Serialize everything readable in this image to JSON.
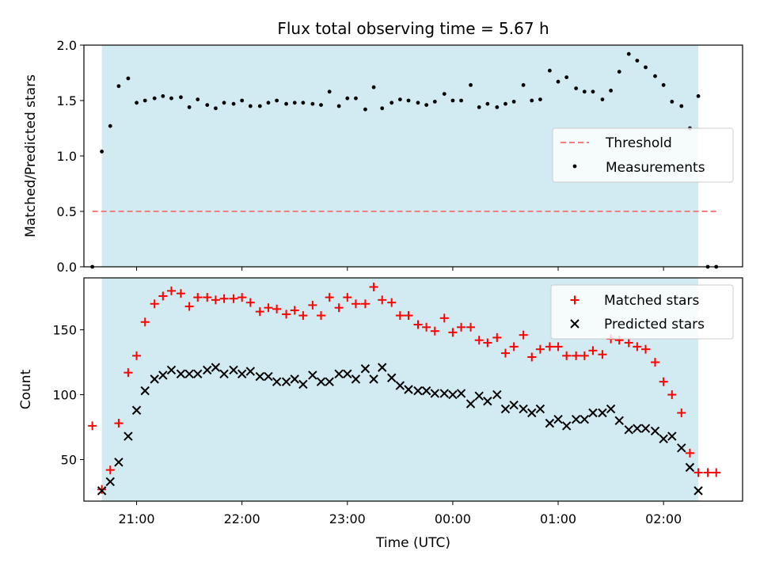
{
  "chart_data": [
    {
      "type": "scatter",
      "title": "Flux total observing time = 5.67 h",
      "xlabel": "",
      "ylabel": "Matched/Predicted stars",
      "xlim": [
        20.5,
        26.75
      ],
      "ylim": [
        0,
        2.0
      ],
      "yticks": [
        0.0,
        0.5,
        1.0,
        1.5,
        2.0
      ],
      "ytick_labels": [
        "0.0",
        "0.5",
        "1.0",
        "1.5",
        "2.0"
      ],
      "grid": false,
      "legend_position": "center-right",
      "observing_window": [
        20.67,
        26.33
      ],
      "observing_window_color": "#add8e6",
      "threshold": {
        "name": "Threshold",
        "value": 0.5,
        "x_range": [
          20.58,
          26.5
        ],
        "color": "#f08080"
      },
      "series": [
        {
          "name": "Measurements",
          "color": "#000000",
          "x": [
            20.58,
            20.67,
            20.75,
            20.83,
            20.92,
            21.0,
            21.08,
            21.17,
            21.25,
            21.33,
            21.42,
            21.5,
            21.58,
            21.67,
            21.75,
            21.83,
            21.92,
            22.0,
            22.08,
            22.17,
            22.25,
            22.33,
            22.42,
            22.5,
            22.58,
            22.67,
            22.75,
            22.83,
            22.92,
            23.0,
            23.08,
            23.17,
            23.25,
            23.33,
            23.42,
            23.5,
            23.58,
            23.67,
            23.75,
            23.83,
            23.92,
            24.0,
            24.08,
            24.17,
            24.25,
            24.33,
            24.42,
            24.5,
            24.58,
            24.67,
            24.75,
            24.83,
            24.92,
            25.0,
            25.08,
            25.17,
            25.25,
            25.33,
            25.42,
            25.5,
            25.58,
            25.67,
            25.75,
            25.83,
            25.92,
            26.0,
            26.08,
            26.17,
            26.25,
            26.33,
            26.42,
            26.5
          ],
          "y": [
            0.0,
            1.04,
            1.27,
            1.63,
            1.7,
            1.48,
            1.5,
            1.52,
            1.54,
            1.52,
            1.53,
            1.44,
            1.51,
            1.46,
            1.43,
            1.48,
            1.47,
            1.5,
            1.45,
            1.45,
            1.48,
            1.5,
            1.47,
            1.48,
            1.48,
            1.47,
            1.46,
            1.58,
            1.45,
            1.52,
            1.52,
            1.42,
            1.62,
            1.43,
            1.48,
            1.51,
            1.5,
            1.48,
            1.46,
            1.49,
            1.56,
            1.5,
            1.5,
            1.64,
            1.44,
            1.47,
            1.44,
            1.47,
            1.49,
            1.64,
            1.5,
            1.51,
            1.77,
            1.67,
            1.71,
            1.61,
            1.58,
            1.58,
            1.51,
            1.59,
            1.76,
            1.92,
            1.86,
            1.8,
            1.72,
            1.64,
            1.49,
            1.45,
            1.25,
            1.54,
            0.0,
            0.0
          ]
        }
      ]
    },
    {
      "type": "scatter",
      "title": "",
      "xlabel": "Time (UTC)",
      "ylabel": "Count",
      "xlim": [
        20.5,
        26.75
      ],
      "ylim": [
        18,
        190
      ],
      "yticks": [
        50,
        100,
        150
      ],
      "ytick_labels": [
        "50",
        "100",
        "150"
      ],
      "xticks": [
        21,
        22,
        23,
        24,
        25,
        26
      ],
      "xtick_labels": [
        "21:00",
        "22:00",
        "23:00",
        "00:00",
        "01:00",
        "02:00"
      ],
      "grid": false,
      "legend_position": "top-right",
      "observing_window": [
        20.67,
        26.33
      ],
      "observing_window_color": "#add8e6",
      "series": [
        {
          "name": "Matched stars",
          "marker": "plus",
          "color": "#ff0000",
          "x": [
            20.58,
            20.67,
            20.75,
            20.83,
            20.92,
            21.0,
            21.08,
            21.17,
            21.25,
            21.33,
            21.42,
            21.5,
            21.58,
            21.67,
            21.75,
            21.83,
            21.92,
            22.0,
            22.08,
            22.17,
            22.25,
            22.33,
            22.42,
            22.5,
            22.58,
            22.67,
            22.75,
            22.83,
            22.92,
            23.0,
            23.08,
            23.17,
            23.25,
            23.33,
            23.42,
            23.5,
            23.58,
            23.67,
            23.75,
            23.83,
            23.92,
            24.0,
            24.08,
            24.17,
            24.25,
            24.33,
            24.42,
            24.5,
            24.58,
            24.67,
            24.75,
            24.83,
            24.92,
            25.0,
            25.08,
            25.17,
            25.25,
            25.33,
            25.42,
            25.5,
            25.58,
            25.67,
            25.75,
            25.83,
            25.92,
            26.0,
            26.08,
            26.17,
            26.25,
            26.33,
            26.42,
            26.5
          ],
          "y": [
            76,
            27,
            42,
            78,
            117,
            130,
            156,
            170,
            176,
            180,
            178,
            168,
            175,
            175,
            173,
            174,
            174,
            175,
            171,
            164,
            167,
            166,
            162,
            165,
            161,
            169,
            161,
            175,
            167,
            175,
            170,
            170,
            183,
            173,
            171,
            161,
            161,
            154,
            152,
            149,
            159,
            148,
            152,
            152,
            142,
            140,
            144,
            132,
            137,
            146,
            129,
            135,
            137,
            137,
            130,
            130,
            130,
            134,
            131,
            143,
            142,
            140,
            137,
            135,
            125,
            110,
            100,
            86,
            55,
            40,
            40,
            40
          ]
        },
        {
          "name": "Predicted stars",
          "marker": "x",
          "color": "#000000",
          "x": [
            20.67,
            20.75,
            20.83,
            20.92,
            21.0,
            21.08,
            21.17,
            21.25,
            21.33,
            21.42,
            21.5,
            21.58,
            21.67,
            21.75,
            21.83,
            21.92,
            22.0,
            22.08,
            22.17,
            22.25,
            22.33,
            22.42,
            22.5,
            22.58,
            22.67,
            22.75,
            22.83,
            22.92,
            23.0,
            23.08,
            23.17,
            23.25,
            23.33,
            23.42,
            23.5,
            23.58,
            23.67,
            23.75,
            23.83,
            23.92,
            24.0,
            24.08,
            24.17,
            24.25,
            24.33,
            24.42,
            24.5,
            24.58,
            24.67,
            24.75,
            24.83,
            24.92,
            25.0,
            25.08,
            25.17,
            25.25,
            25.33,
            25.42,
            25.5,
            25.58,
            25.67,
            25.75,
            25.83,
            25.92,
            26.0,
            26.08,
            26.17,
            26.25,
            26.33
          ],
          "y": [
            26,
            33,
            48,
            68,
            88,
            103,
            112,
            115,
            119,
            116,
            116,
            116,
            119,
            121,
            116,
            119,
            116,
            118,
            114,
            114,
            110,
            110,
            112,
            108,
            115,
            110,
            110,
            116,
            116,
            112,
            120,
            112,
            121,
            113,
            107,
            104,
            103,
            103,
            101,
            101,
            100,
            101,
            93,
            99,
            95,
            100,
            89,
            92,
            89,
            86,
            89,
            78,
            81,
            76,
            81,
            81,
            86,
            86,
            89,
            80,
            73,
            74,
            74,
            72,
            66,
            68,
            59,
            44,
            26
          ]
        }
      ]
    }
  ]
}
